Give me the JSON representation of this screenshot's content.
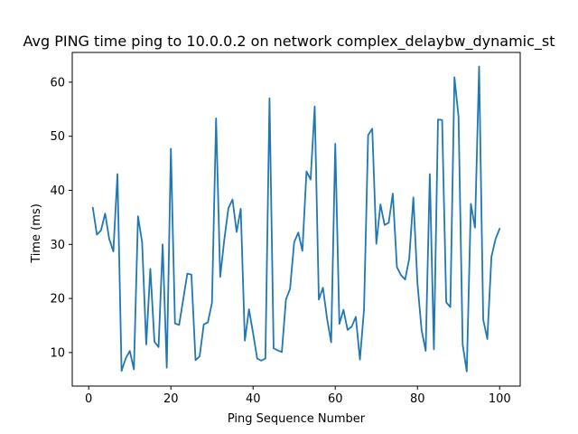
{
  "chart_data": {
    "type": "line",
    "title": "Avg PING time ping to 10.0.0.2 on network complex_delaybw_dynamic_st",
    "xlabel": "Ping Sequence Number",
    "ylabel": "Time (ms)",
    "xlim": [
      -4,
      105
    ],
    "ylim": [
      3.8,
      65.5
    ],
    "xticks": [
      0,
      20,
      40,
      60,
      80,
      100
    ],
    "yticks": [
      10,
      20,
      30,
      40,
      50,
      60
    ],
    "grid": false,
    "series": [
      {
        "color": "#1f77b4",
        "x": [
          1,
          2,
          3,
          4,
          5,
          6,
          7,
          8,
          9,
          10,
          11,
          12,
          13,
          14,
          15,
          16,
          17,
          18,
          19,
          20,
          21,
          22,
          23,
          24,
          25,
          26,
          27,
          28,
          29,
          30,
          31,
          32,
          33,
          34,
          35,
          36,
          37,
          38,
          39,
          40,
          41,
          42,
          43,
          44,
          45,
          46,
          47,
          48,
          49,
          50,
          51,
          52,
          53,
          54,
          55,
          56,
          57,
          58,
          59,
          60,
          61,
          62,
          63,
          64,
          65,
          66,
          67,
          68,
          69,
          70,
          71,
          72,
          73,
          74,
          75,
          76,
          77,
          78,
          79,
          80,
          81,
          82,
          83,
          84,
          85,
          86,
          87,
          88,
          89,
          90,
          91,
          92,
          93,
          94,
          95,
          96,
          97,
          98,
          99,
          100
        ],
        "values": [
          36.8,
          31.8,
          32.6,
          35.7,
          31.0,
          28.7,
          43.0,
          6.6,
          8.9,
          10.3,
          6.9,
          35.2,
          30.4,
          11.5,
          25.5,
          12.0,
          11.0,
          30.0,
          7.2,
          47.7,
          15.4,
          15.1,
          19.8,
          24.6,
          24.4,
          8.6,
          9.3,
          15.2,
          15.6,
          19.2,
          53.3,
          24.0,
          30.9,
          36.7,
          38.3,
          32.3,
          36.6,
          12.2,
          18.0,
          13.6,
          8.9,
          8.5,
          8.9,
          57.0,
          10.8,
          10.4,
          10.1,
          19.8,
          21.8,
          30.4,
          32.2,
          28.8,
          43.5,
          42.0,
          55.5,
          19.8,
          22.0,
          16.3,
          11.9,
          48.6,
          15.3,
          17.9,
          14.2,
          14.8,
          16.6,
          8.7,
          18.0,
          50.2,
          51.4,
          30.1,
          37.4,
          33.6,
          34.0,
          39.4,
          25.8,
          24.3,
          23.5,
          27.4,
          38.7,
          22.8,
          14.2,
          10.3,
          43.0,
          10.6,
          53.1,
          53.0,
          19.3,
          18.4,
          60.9,
          53.6,
          11.5,
          6.5,
          37.5,
          33.1,
          62.9,
          16.1,
          12.5,
          27.7,
          31.0,
          32.9
        ]
      }
    ]
  }
}
